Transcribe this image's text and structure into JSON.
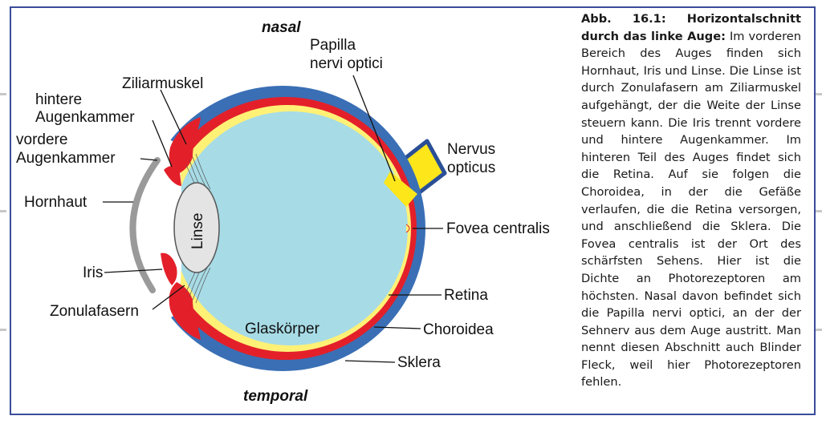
{
  "orientation": {
    "top": "nasal",
    "bottom": "temporal"
  },
  "labels": {
    "ziliarmuskel": "Ziliarmuskel",
    "hintere": [
      "hintere",
      "Augenkammer"
    ],
    "vordere": [
      "vordere",
      "Augenkammer"
    ],
    "hornhaut": "Hornhaut",
    "iris": "Iris",
    "zonulafasern": "Zonulafasern",
    "linse": "Linse",
    "glaskoerper": "Glaskörper",
    "papilla": [
      "Papilla",
      "nervi optici"
    ],
    "nervus": [
      "Nervus",
      "opticus"
    ],
    "fovea": "Fovea centralis",
    "retina": "Retina",
    "choroidea": "Choroidea",
    "sklera": "Sklera"
  },
  "caption": {
    "title": "Abb. 16.1: Horizontalschnitt durch das linke Auge:",
    "body": " Im vorderen Bereich des Auges finden sich Hornhaut, Iris und Linse. Die Linse ist durch Zonulafasern am Ziliarmuskel aufgehängt, der die Weite der Linse steuern kann. Die Iris trennt vordere und hintere Augenkammer. Im hinteren Teil des Auges findet sich die Retina. Auf sie folgen die Choroidea, in der die Gefäße verlaufen, die die Retina versorgen, und anschließend die Sklera. Die Fovea centralis ist der Ort des schärfsten Sehens. Hier ist die Dichte an Photorezeptoren am höchsten. Nasal davon befindet sich die Papilla nervi optici, an der der Sehnerv aus dem Auge austritt. Man nennt diesen Abschnitt auch Blinder Fleck, weil hier Photorezeptoren fehlen."
  },
  "colors": {
    "frame": "#3a4c9a",
    "sklera": "#3a6fb5",
    "choroidea": "#e3202a",
    "retina": "#fff176",
    "vitreous": "#a7dbe6",
    "lens": "#e4e4e4",
    "cornea": "#9a9a9a",
    "nerve": "#fde61a"
  }
}
